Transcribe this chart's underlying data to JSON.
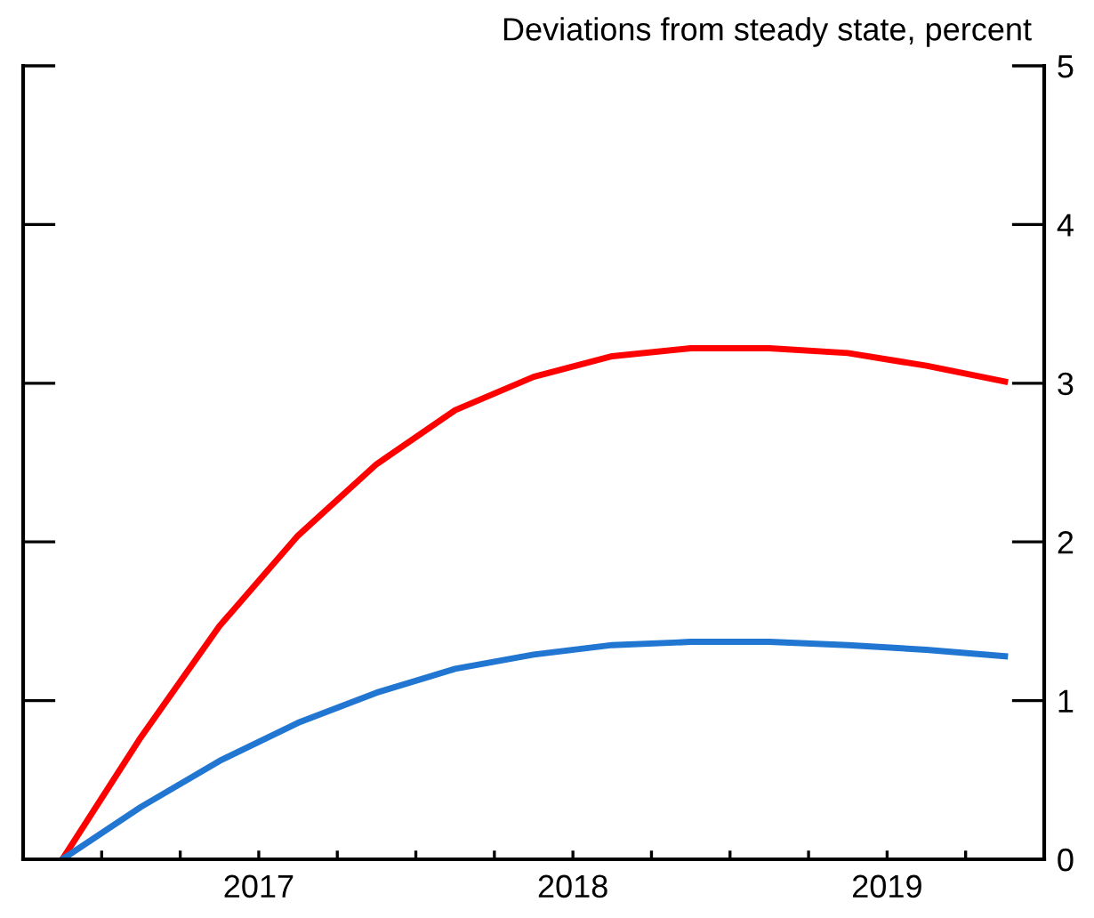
{
  "chart_data": {
    "type": "line",
    "ylabel": "Deviations from steady state, percent",
    "x": [
      2016.875,
      2017.125,
      2017.375,
      2017.625,
      2017.875,
      2018.125,
      2018.375,
      2018.625,
      2018.875,
      2019.125,
      2019.375,
      2019.625,
      2019.875
    ],
    "series": [
      {
        "color": "#ff0000",
        "values": [
          0,
          0.77,
          1.47,
          2.04,
          2.49,
          2.83,
          3.04,
          3.17,
          3.22,
          3.22,
          3.19,
          3.11,
          3.01
        ]
      },
      {
        "color": "#2176d2",
        "values": [
          0,
          0.33,
          0.62,
          0.86,
          1.05,
          1.2,
          1.29,
          1.35,
          1.37,
          1.37,
          1.35,
          1.32,
          1.28
        ]
      }
    ],
    "xlim": [
      2016.75,
      2020.0
    ],
    "xticks": [
      {
        "value": 2017,
        "label": null
      },
      {
        "value": 2017.25,
        "label": null
      },
      {
        "value": 2017.5,
        "label": "2017"
      },
      {
        "value": 2017.75,
        "label": null
      },
      {
        "value": 2018,
        "label": null
      },
      {
        "value": 2018.25,
        "label": null
      },
      {
        "value": 2018.5,
        "label": "2018"
      },
      {
        "value": 2018.75,
        "label": null
      },
      {
        "value": 2019,
        "label": null
      },
      {
        "value": 2019.25,
        "label": null
      },
      {
        "value": 2019.5,
        "label": "2019"
      },
      {
        "value": 2019.75,
        "label": null
      }
    ],
    "ylim": [
      0,
      5
    ],
    "yticks": [
      0,
      1,
      2,
      3,
      4,
      5
    ],
    "grid": false,
    "legend": false,
    "marker": "none",
    "line_style": "solid"
  }
}
